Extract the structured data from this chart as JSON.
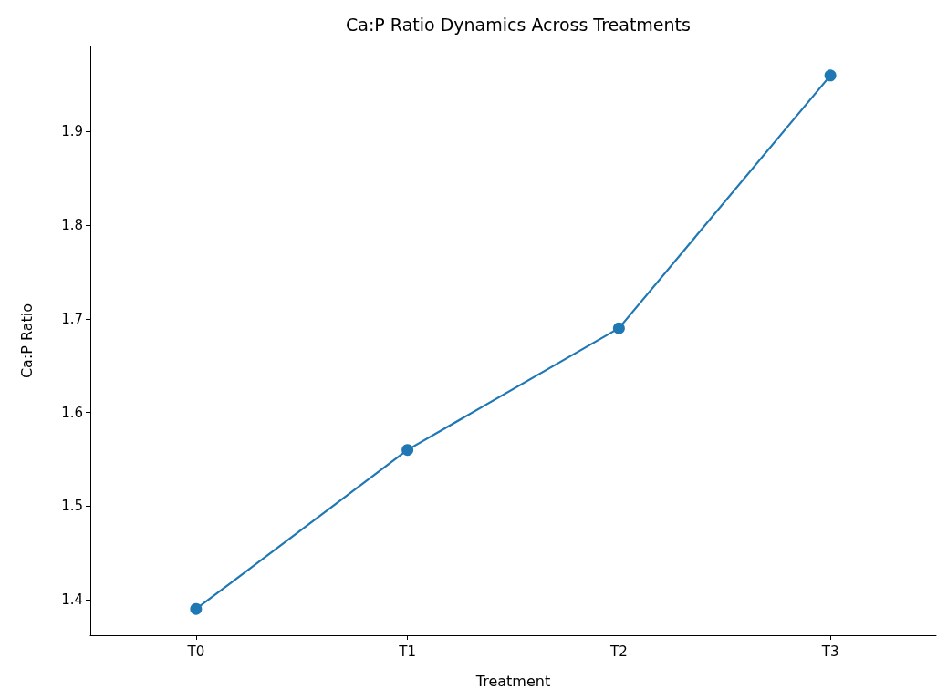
{
  "chart_data": {
    "type": "line",
    "title": "Ca:P Ratio Dynamics Across Treatments",
    "xlabel": "Treatment",
    "ylabel": "Ca:P Ratio",
    "categories": [
      "T0",
      "T1",
      "T2",
      "T3"
    ],
    "series": [
      {
        "color": "#1f77b4",
        "values": [
          1.39,
          1.56,
          1.69,
          1.96
        ]
      }
    ],
    "ylim": [
      1.362,
      1.991
    ],
    "yticks": [
      1.4,
      1.5,
      1.6,
      1.7,
      1.8,
      1.9
    ],
    "grid": false,
    "marker": "circle",
    "line_style": "solid"
  }
}
